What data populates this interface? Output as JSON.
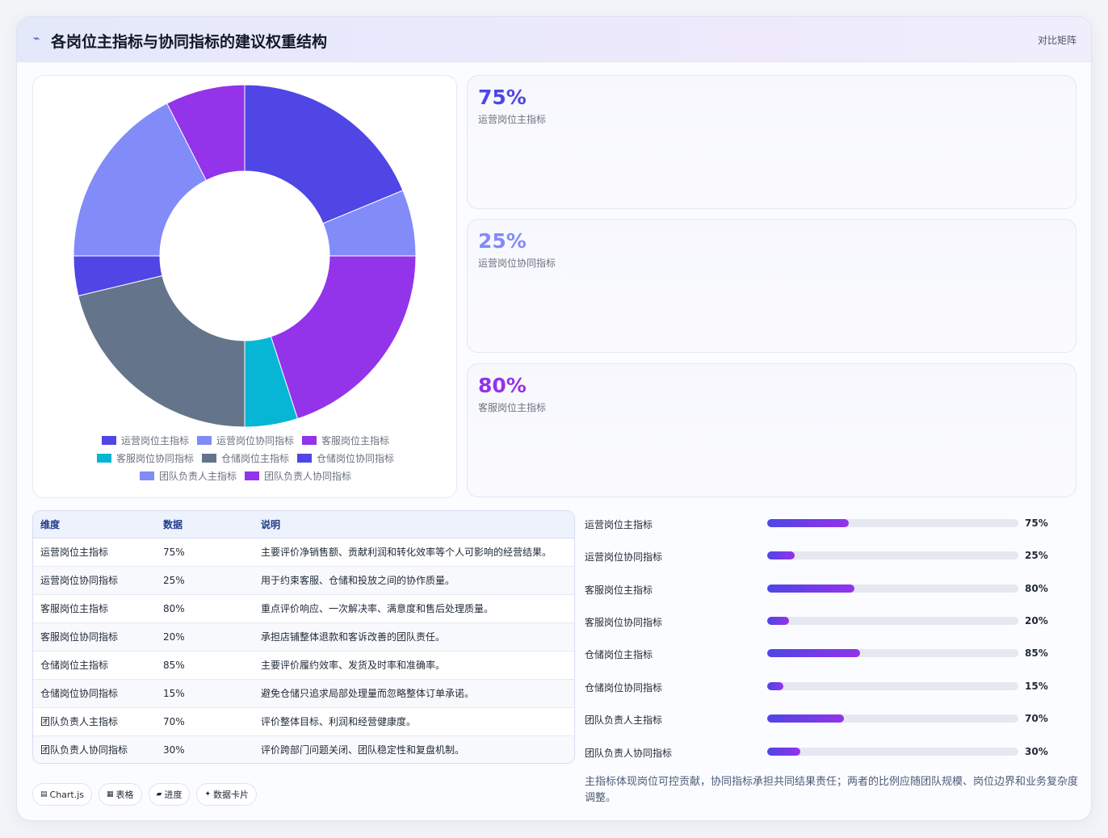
{
  "header": {
    "icon": "trend-line-icon",
    "title": "各岗位主指标与协同指标的建议权重结构",
    "right_link": "对比矩阵"
  },
  "chart_data": {
    "type": "pie",
    "variant": "doughnut",
    "categories": [
      "运营岗位主指标",
      "运营岗位协同指标",
      "客服岗位主指标",
      "客服岗位协同指标",
      "仓储岗位主指标",
      "仓储岗位协同指标",
      "团队负责人主指标",
      "团队负责人协同指标"
    ],
    "values": [
      75,
      25,
      80,
      20,
      85,
      15,
      70,
      30
    ],
    "colors": [
      "#4f46e5",
      "#818cf8",
      "#9333ea",
      "#06b6d4",
      "#64748b",
      "#4f46e5",
      "#818cf8",
      "#9333ea"
    ],
    "legend": "bottom"
  },
  "kpis": [
    {
      "value": "75%",
      "label": "运营岗位主指标",
      "color": "#4f46e5"
    },
    {
      "value": "25%",
      "label": "运营岗位协同指标",
      "color": "#818cf8"
    },
    {
      "value": "80%",
      "label": "客服岗位主指标",
      "color": "#9333ea"
    }
  ],
  "table": {
    "headers": [
      "维度",
      "数据",
      "说明"
    ],
    "rows": [
      [
        "运营岗位主指标",
        "75%",
        "主要评价净销售额、贡献利润和转化效率等个人可影响的经营结果。"
      ],
      [
        "运营岗位协同指标",
        "25%",
        "用于约束客服、仓储和投放之间的协作质量。"
      ],
      [
        "客服岗位主指标",
        "80%",
        "重点评价响应、一次解决率、满意度和售后处理质量。"
      ],
      [
        "客服岗位协同指标",
        "20%",
        "承担店铺整体退款和客诉改善的团队责任。"
      ],
      [
        "仓储岗位主指标",
        "85%",
        "主要评价履约效率、发货及时率和准确率。"
      ],
      [
        "仓储岗位协同指标",
        "15%",
        "避免仓储只追求局部处理量而忽略整体订单承诺。"
      ],
      [
        "团队负责人主指标",
        "70%",
        "评价整体目标、利润和经营健康度。"
      ],
      [
        "团队负责人协同指标",
        "30%",
        "评价跨部门问题关闭、团队稳定性和复盘机制。"
      ]
    ]
  },
  "progress": [
    {
      "label": "运营岗位主指标",
      "value": 75,
      "text": "75%"
    },
    {
      "label": "运营岗位协同指标",
      "value": 25,
      "text": "25%"
    },
    {
      "label": "客服岗位主指标",
      "value": 80,
      "text": "80%"
    },
    {
      "label": "客服岗位协同指标",
      "value": 20,
      "text": "20%"
    },
    {
      "label": "仓储岗位主指标",
      "value": 85,
      "text": "85%"
    },
    {
      "label": "仓储岗位协同指标",
      "value": 15,
      "text": "15%"
    },
    {
      "label": "团队负责人主指标",
      "value": 70,
      "text": "70%"
    },
    {
      "label": "团队负责人协同指标",
      "value": 30,
      "text": "30%"
    }
  ],
  "chips": [
    {
      "icon": "chart-icon",
      "glyph": "▤",
      "label": "Chart.js"
    },
    {
      "icon": "table-icon",
      "glyph": "▦",
      "label": "表格"
    },
    {
      "icon": "progress-icon",
      "glyph": "▰",
      "label": "进度"
    },
    {
      "icon": "sparkle-icon",
      "glyph": "✦",
      "label": "数据卡片"
    }
  ],
  "note": "主指标体现岗位可控贡献，协同指标承担共同结果责任；两者的比例应随团队规模、岗位边界和业务复杂度调整。"
}
